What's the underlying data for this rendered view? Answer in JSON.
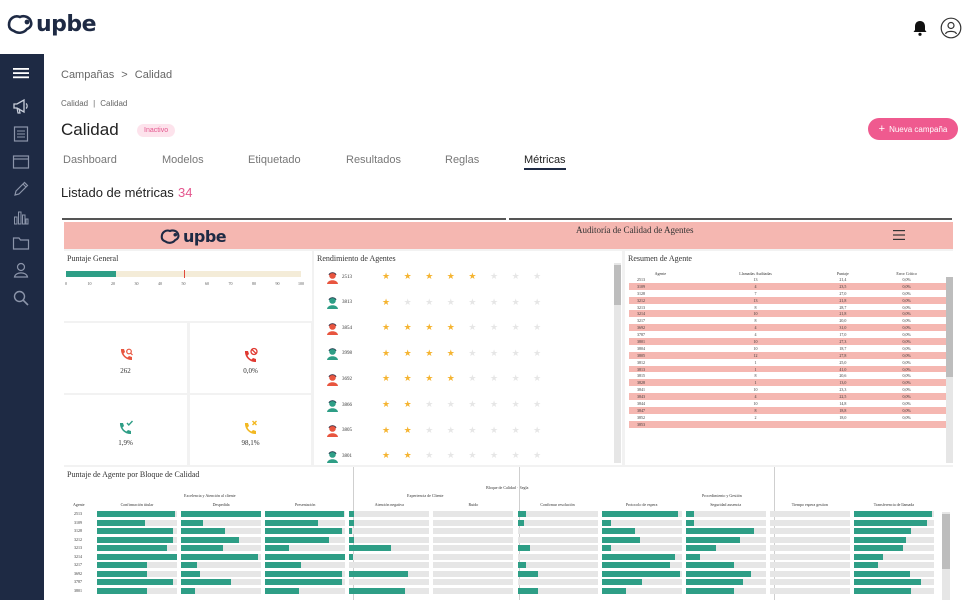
{
  "brand": {
    "name": "upbe"
  },
  "header": {
    "notifications_icon": "bell-icon",
    "user_icon": "user-circle-icon"
  },
  "sidebar": {
    "items": [
      {
        "name": "menu",
        "icon": "menu-icon"
      },
      {
        "name": "campaigns",
        "icon": "megaphone-icon"
      },
      {
        "name": "documents",
        "icon": "document-icon"
      },
      {
        "name": "window",
        "icon": "window-icon"
      },
      {
        "name": "edit",
        "icon": "pencil-icon"
      },
      {
        "name": "stats",
        "icon": "bar-chart-icon"
      },
      {
        "name": "folder",
        "icon": "folder-icon"
      },
      {
        "name": "users",
        "icon": "user-icon"
      },
      {
        "name": "search",
        "icon": "search-icon"
      }
    ]
  },
  "breadcrumb": {
    "root": "Campañas",
    "separator": ">",
    "current": "Calidad"
  },
  "subcrumb": {
    "first": "Calidad",
    "separator": "|",
    "second": "Calidad"
  },
  "page": {
    "title": "Calidad",
    "status": "Inactivo",
    "new_button": "Nueva campaña",
    "new_button_icon": "+"
  },
  "tabs": [
    "Dashboard",
    "Modelos",
    "Etiquetado",
    "Resultados",
    "Reglas",
    "Métricas"
  ],
  "active_tab": "Métricas",
  "metrics": {
    "title": "Listado de métricas",
    "count": "34"
  },
  "embed": {
    "logo": "upbe",
    "title": "Auditoría de Calidad de Agentes",
    "colors": {
      "accent": "#2e9e86",
      "header": "#f5b7b1",
      "star": "#f5b431"
    },
    "general": {
      "title": "Puntaje General",
      "score": 21.4,
      "marker": 50,
      "ticks": [
        "0",
        "10",
        "20",
        "30",
        "40",
        "50",
        "60",
        "70",
        "80",
        "90",
        "100"
      ],
      "kpis": [
        {
          "value": "262",
          "icon": "phone-search-icon",
          "color": "#e8553f"
        },
        {
          "value": "0,0%",
          "icon": "phone-blocked-icon",
          "color": "#e03a32"
        },
        {
          "value": "1,9%",
          "icon": "phone-check-icon",
          "color": "#2e9e86"
        },
        {
          "value": "98,1%",
          "icon": "phone-cross-icon",
          "color": "#f2b822"
        }
      ]
    },
    "ranking": {
      "title": "Rendimiento de Agentes",
      "agents": [
        {
          "id": "2513",
          "stars": 5,
          "avatar": "red"
        },
        {
          "id": "3813",
          "stars": 1,
          "avatar": "green"
        },
        {
          "id": "3854",
          "stars": 4,
          "avatar": "red"
        },
        {
          "id": "3998",
          "stars": 4,
          "avatar": "green"
        },
        {
          "id": "3692",
          "stars": 4,
          "avatar": "red"
        },
        {
          "id": "3866",
          "stars": 2,
          "avatar": "green"
        },
        {
          "id": "3805",
          "stars": 2,
          "avatar": "red"
        },
        {
          "id": "3801",
          "stars": 2,
          "avatar": "green"
        }
      ]
    },
    "summary": {
      "title": "Resumen de Agente",
      "columns": [
        "Agente",
        "Llamadas Auditadas",
        "Puntaje",
        "Error Crítico"
      ],
      "rows": [
        [
          "2513",
          "13",
          "21,4",
          "0,0%"
        ],
        [
          "3109",
          "4",
          "23,5",
          "0,0%"
        ],
        [
          "3128",
          "7",
          "27,0",
          "0,0%"
        ],
        [
          "3212",
          "13",
          "21,8",
          "0,0%"
        ],
        [
          "3213",
          "8",
          "28,7",
          "0,0%"
        ],
        [
          "3214",
          "10",
          "21,8",
          "0,0%"
        ],
        [
          "3217",
          "8",
          "20,0",
          "0,0%"
        ],
        [
          "3692",
          "4",
          "31,0",
          "0,0%"
        ],
        [
          "3787",
          "4",
          "17,0",
          "0,0%"
        ],
        [
          "3801",
          "10",
          "27,3",
          "0,0%"
        ],
        [
          "3804",
          "10",
          "18,7",
          "0,0%"
        ],
        [
          "3805",
          "12",
          "27,8",
          "0,0%"
        ],
        [
          "3812",
          "1",
          "25,0",
          "0,0%"
        ],
        [
          "3813",
          "1",
          "41,0",
          "0,0%"
        ],
        [
          "3815",
          "8",
          "20,6",
          "0,0%"
        ],
        [
          "3828",
          "1",
          "13,0",
          "0,0%"
        ],
        [
          "3841",
          "10",
          "23,3",
          "0,0%"
        ],
        [
          "3843",
          "4",
          "22,5",
          "0,0%"
        ],
        [
          "3844",
          "10",
          "14,8",
          "0,0%"
        ],
        [
          "3847",
          "8",
          "18,8",
          "0,0%"
        ],
        [
          "3852",
          "2",
          "18,0",
          "0,0%"
        ],
        [
          "3853",
          "",
          "",
          ""
        ]
      ]
    },
    "blocks": {
      "title": "Puntaje de Agente por Bloque de Calidad",
      "top_header": "Bloque de Calidad · Regla",
      "groups": [
        "Excelencia y Atención al cliente",
        "Experiencia de Cliente",
        "Procedimiento y Gestión"
      ],
      "agent_header": "Agente",
      "agents": [
        "2513",
        "3109",
        "3128",
        "3212",
        "3213",
        "3214",
        "3217",
        "3692",
        "3787",
        "3801"
      ],
      "columns": [
        {
          "name": "Confirmación titular",
          "values": [
            0.98,
            0.6,
            0.95,
            0.95,
            0.88,
            1.0,
            0.63,
            0.62,
            0.95,
            0.62
          ]
        },
        {
          "name": "Despedida",
          "values": [
            1.0,
            0.27,
            0.55,
            0.72,
            0.52,
            0.96,
            0.2,
            0.24,
            0.63,
            0.18
          ]
        },
        {
          "name": "Presentación",
          "values": [
            0.98,
            0.66,
            0.96,
            0.8,
            0.3,
            1.0,
            0.45,
            0.96,
            0.96,
            0.42
          ]
        },
        {
          "name": "Atención negativa",
          "values": [
            0.06,
            0.06,
            0.04,
            0.06,
            0.52,
            0.05,
            0.0,
            0.74,
            0.0,
            0.7
          ]
        },
        {
          "name": "Ruido",
          "values": [
            0.0,
            0.0,
            0.0,
            0.0,
            0.0,
            0.0,
            0.0,
            0.0,
            0.0,
            0.0
          ]
        },
        {
          "name": "Confirmar resolución",
          "values": [
            0.1,
            0.08,
            0.0,
            0.0,
            0.15,
            0.0,
            0.1,
            0.25,
            0.0,
            0.25
          ]
        },
        {
          "name": "Protocolo de espera",
          "values": [
            0.95,
            0.12,
            0.42,
            0.48,
            0.12,
            0.92,
            0.85,
            0.98,
            0.5,
            0.3
          ]
        },
        {
          "name": "Seguridad ausencia",
          "values": [
            0.1,
            0.1,
            0.85,
            0.68,
            0.38,
            0.18,
            0.6,
            0.82,
            0.72,
            0.6
          ]
        },
        {
          "name": "Tiempo espera gestion",
          "values": [
            0.0,
            0.0,
            0.0,
            0.0,
            0.0,
            0.0,
            0.0,
            0.0,
            0.0,
            0.0
          ]
        },
        {
          "name": "Transferencia de llamada",
          "values": [
            0.98,
            0.92,
            0.72,
            0.65,
            0.62,
            0.36,
            0.3,
            0.7,
            0.84,
            0.72
          ]
        }
      ]
    }
  }
}
